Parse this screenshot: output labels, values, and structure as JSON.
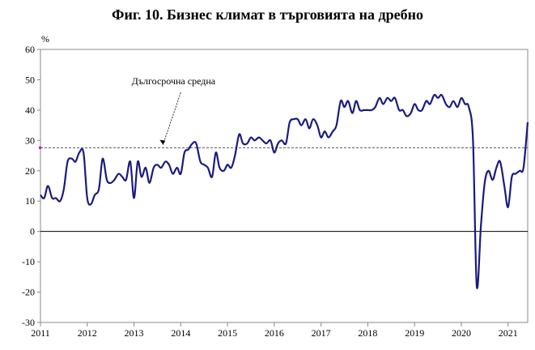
{
  "chart_data": {
    "type": "line",
    "title": "Фиг. 10. Бизнес климат в търговията на дребно",
    "ylabel": "%",
    "ylim": [
      -30,
      60
    ],
    "yticks": [
      60,
      50,
      40,
      30,
      20,
      10,
      0,
      -10,
      -20,
      -30
    ],
    "xlim": [
      2011,
      2021.42
    ],
    "xticks": [
      "2011",
      "2012",
      "2013",
      "2014",
      "2015",
      "2016",
      "2017",
      "2018",
      "2019",
      "2020",
      "2021"
    ],
    "annotation": "Дългосрочна средна",
    "long_term_average": 27.6,
    "series": [
      {
        "color": "#1a1a7e",
        "points": [
          [
            2011.0,
            12
          ],
          [
            2011.08,
            11
          ],
          [
            2011.16,
            15
          ],
          [
            2011.25,
            11
          ],
          [
            2011.33,
            11
          ],
          [
            2011.42,
            10
          ],
          [
            2011.5,
            14
          ],
          [
            2011.58,
            23
          ],
          [
            2011.67,
            24
          ],
          [
            2011.75,
            23
          ],
          [
            2011.83,
            26
          ],
          [
            2011.92,
            26
          ],
          [
            2012.0,
            11
          ],
          [
            2012.08,
            9
          ],
          [
            2012.16,
            12
          ],
          [
            2012.25,
            14
          ],
          [
            2012.33,
            24
          ],
          [
            2012.42,
            17
          ],
          [
            2012.5,
            16
          ],
          [
            2012.58,
            17
          ],
          [
            2012.67,
            19
          ],
          [
            2012.75,
            18
          ],
          [
            2012.83,
            17
          ],
          [
            2012.92,
            23
          ],
          [
            2013.0,
            11
          ],
          [
            2013.08,
            23
          ],
          [
            2013.16,
            18
          ],
          [
            2013.25,
            21
          ],
          [
            2013.33,
            16
          ],
          [
            2013.42,
            21
          ],
          [
            2013.5,
            22
          ],
          [
            2013.58,
            21
          ],
          [
            2013.67,
            23
          ],
          [
            2013.75,
            22
          ],
          [
            2013.83,
            19
          ],
          [
            2013.92,
            21
          ],
          [
            2014.0,
            19
          ],
          [
            2014.08,
            26
          ],
          [
            2014.16,
            27
          ],
          [
            2014.25,
            29
          ],
          [
            2014.33,
            29
          ],
          [
            2014.42,
            23
          ],
          [
            2014.5,
            22
          ],
          [
            2014.58,
            21
          ],
          [
            2014.67,
            18
          ],
          [
            2014.75,
            26
          ],
          [
            2014.83,
            21
          ],
          [
            2014.92,
            20
          ],
          [
            2015.0,
            22
          ],
          [
            2015.08,
            21
          ],
          [
            2015.16,
            25
          ],
          [
            2015.25,
            32
          ],
          [
            2015.33,
            29
          ],
          [
            2015.42,
            29
          ],
          [
            2015.5,
            31
          ],
          [
            2015.58,
            30
          ],
          [
            2015.67,
            31
          ],
          [
            2015.75,
            30
          ],
          [
            2015.83,
            29
          ],
          [
            2015.92,
            30
          ],
          [
            2016.0,
            26
          ],
          [
            2016.08,
            29
          ],
          [
            2016.16,
            30
          ],
          [
            2016.25,
            29
          ],
          [
            2016.33,
            36
          ],
          [
            2016.42,
            37
          ],
          [
            2016.5,
            37
          ],
          [
            2016.58,
            35
          ],
          [
            2016.67,
            37
          ],
          [
            2016.75,
            34
          ],
          [
            2016.83,
            37
          ],
          [
            2016.92,
            35
          ],
          [
            2017.0,
            31
          ],
          [
            2017.08,
            33
          ],
          [
            2017.16,
            31
          ],
          [
            2017.25,
            33
          ],
          [
            2017.33,
            35
          ],
          [
            2017.42,
            43
          ],
          [
            2017.5,
            41
          ],
          [
            2017.58,
            43
          ],
          [
            2017.67,
            39
          ],
          [
            2017.75,
            43
          ],
          [
            2017.83,
            40
          ],
          [
            2017.92,
            40
          ],
          [
            2018.0,
            40
          ],
          [
            2018.08,
            40
          ],
          [
            2018.16,
            41
          ],
          [
            2018.25,
            44
          ],
          [
            2018.33,
            42
          ],
          [
            2018.42,
            44
          ],
          [
            2018.5,
            43
          ],
          [
            2018.58,
            44
          ],
          [
            2018.67,
            40
          ],
          [
            2018.75,
            40
          ],
          [
            2018.83,
            38
          ],
          [
            2018.92,
            39
          ],
          [
            2019.0,
            42
          ],
          [
            2019.08,
            40
          ],
          [
            2019.16,
            40
          ],
          [
            2019.25,
            43
          ],
          [
            2019.33,
            42
          ],
          [
            2019.42,
            45
          ],
          [
            2019.5,
            44
          ],
          [
            2019.58,
            45
          ],
          [
            2019.67,
            42
          ],
          [
            2019.75,
            41
          ],
          [
            2019.83,
            43
          ],
          [
            2019.92,
            41
          ],
          [
            2020.0,
            44
          ],
          [
            2020.08,
            42
          ],
          [
            2020.16,
            41
          ],
          [
            2020.25,
            30
          ],
          [
            2020.33,
            -18
          ],
          [
            2020.42,
            2
          ],
          [
            2020.5,
            16
          ],
          [
            2020.58,
            20
          ],
          [
            2020.67,
            17
          ],
          [
            2020.75,
            21
          ],
          [
            2020.83,
            23
          ],
          [
            2020.92,
            15
          ],
          [
            2021.0,
            8
          ],
          [
            2021.08,
            18
          ],
          [
            2021.16,
            19
          ],
          [
            2021.25,
            20
          ],
          [
            2021.33,
            21
          ],
          [
            2021.42,
            36
          ]
        ]
      }
    ]
  }
}
